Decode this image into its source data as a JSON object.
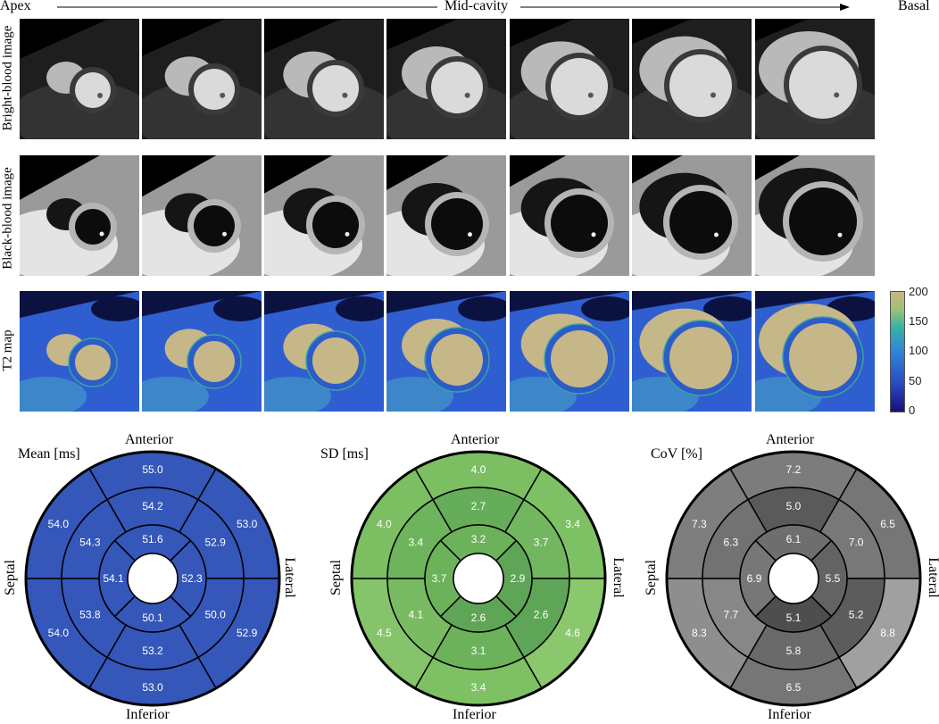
{
  "header": {
    "left": "Apex",
    "middle": "Mid-cavity",
    "right": "Basal"
  },
  "rows": [
    {
      "label": "Bright-blood image",
      "kind": "bright"
    },
    {
      "label": "Black-blood image",
      "kind": "black"
    },
    {
      "label": "T2 map",
      "kind": "t2"
    }
  ],
  "slices_per_row": 7,
  "colorbar": {
    "ticks": [
      "200",
      "150",
      "100",
      "50",
      "0"
    ],
    "colors": [
      "#1a0f7a",
      "#2a4fc6",
      "#2f83d8",
      "#35b3a8",
      "#9cc078",
      "#c8b883"
    ]
  },
  "bullseyes": [
    {
      "title": "Mean [ms]",
      "anterior": "Anterior",
      "inferior": "Inferior",
      "septal": "Septal",
      "lateral": "Lateral",
      "theme": "blue",
      "basal": [
        "55.0",
        "53.0",
        "52.9",
        "53.0",
        "54.0",
        "54.0"
      ],
      "mid": [
        "54.2",
        "52.9",
        "50.0",
        "53.2",
        "53.8",
        "54.3"
      ],
      "apical": [
        "51.6",
        "52.3",
        "50.1",
        "54.1"
      ],
      "colors": {
        "basal": [
          "#3457b9",
          "#3457b9",
          "#3457b9",
          "#3457b9",
          "#3457b9",
          "#3457b9"
        ],
        "mid": [
          "#3457b9",
          "#3457b9",
          "#3457b9",
          "#3457b9",
          "#3457b9",
          "#3457b9"
        ],
        "apical": [
          "#3457b9",
          "#3457b9",
          "#3457b9",
          "#3457b9"
        ]
      }
    },
    {
      "title": "SD [ms]",
      "anterior": "Anterior",
      "inferior": "Inferior",
      "septal": "Septal",
      "lateral": "Lateral",
      "theme": "green",
      "basal": [
        "4.0",
        "3.4",
        "4.6",
        "3.4",
        "4.5",
        "4.0"
      ],
      "mid": [
        "2.7",
        "3.7",
        "2.6",
        "3.1",
        "4.1",
        "3.4"
      ],
      "apical": [
        "3.2",
        "2.9",
        "2.6",
        "3.7"
      ],
      "colors": {
        "basal": [
          "#7bbf62",
          "#7ec165",
          "#8bc86d",
          "#7ec165",
          "#85c46a",
          "#7bbf62"
        ],
        "mid": [
          "#66ad59",
          "#72b75f",
          "#5fa557",
          "#6cb25b",
          "#79bb62",
          "#6eb45d"
        ],
        "apical": [
          "#6cb25b",
          "#5fa557",
          "#5fa557",
          "#6cb25b"
        ]
      }
    },
    {
      "title": "CoV [%]",
      "anterior": "Anterior",
      "inferior": "Inferior",
      "septal": "Septal",
      "lateral": "Lateral",
      "theme": "gray",
      "basal": [
        "7.2",
        "6.5",
        "8.8",
        "6.5",
        "8.3",
        "7.3"
      ],
      "mid": [
        "5.0",
        "7.0",
        "5.2",
        "5.8",
        "7.7",
        "6.3"
      ],
      "apical": [
        "6.1",
        "5.5",
        "5.1",
        "6.9"
      ],
      "colors": {
        "basal": [
          "#7c7c7c",
          "#767676",
          "#a0a0a0",
          "#767676",
          "#8e8e8e",
          "#7e7e7e"
        ],
        "mid": [
          "#5a5a5a",
          "#787878",
          "#5c5c5c",
          "#6a6a6a",
          "#878787",
          "#727272"
        ],
        "apical": [
          "#6e6e6e",
          "#636363",
          "#4e4e4e",
          "#777777"
        ]
      }
    }
  ]
}
